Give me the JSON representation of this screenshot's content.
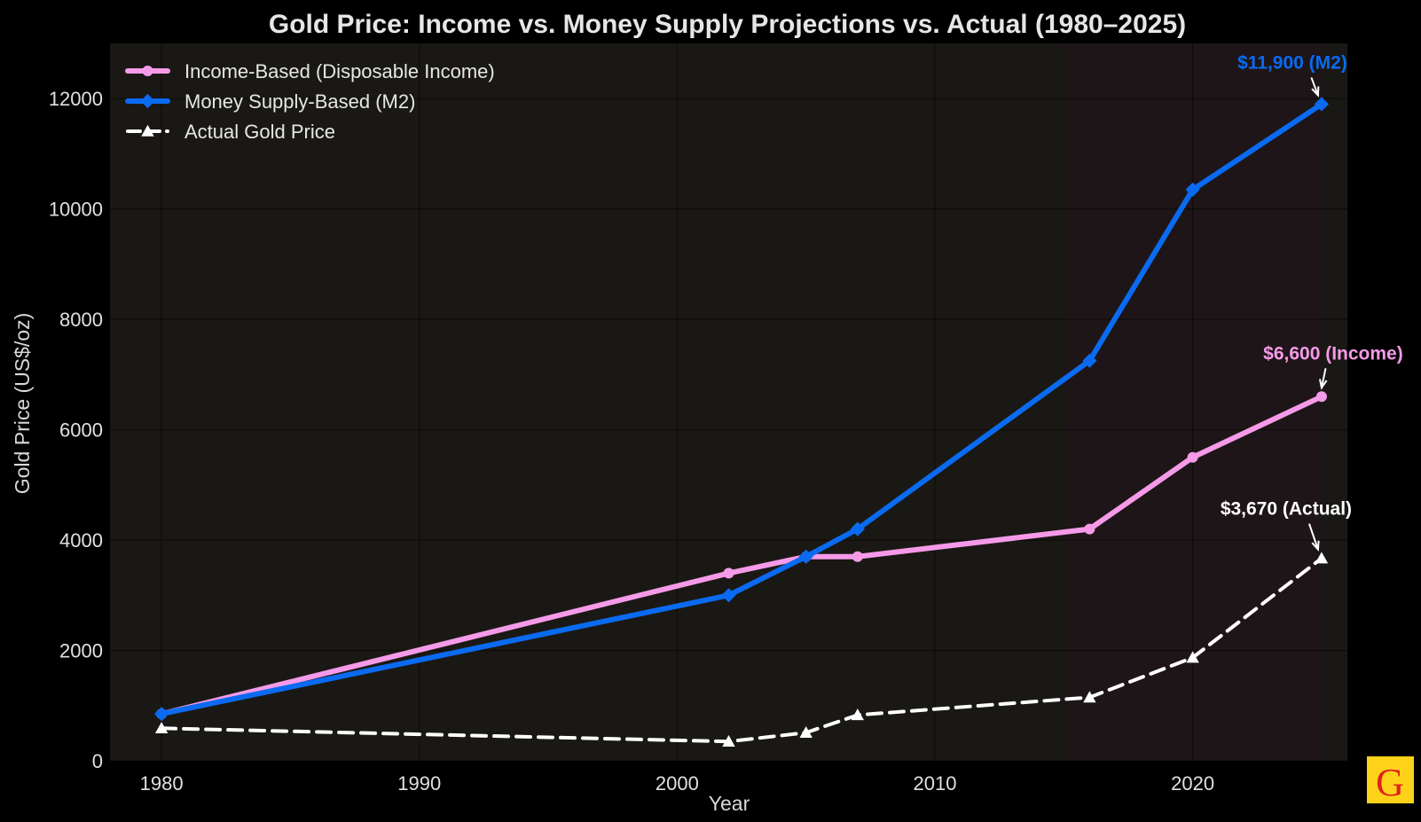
{
  "chart_data": {
    "type": "line",
    "title": "Gold Price: Income vs. Money Supply Projections vs. Actual (1980–2025)",
    "xlabel": "Year",
    "ylabel": "Gold Price (US$/oz)",
    "xlim": [
      1978,
      2026
    ],
    "ylim": [
      0,
      13000
    ],
    "xticks": [
      1980,
      1990,
      2000,
      2010,
      2020
    ],
    "yticks": [
      0,
      2000,
      4000,
      6000,
      8000,
      10000,
      12000
    ],
    "grid": true,
    "legend_position": "top-left",
    "shaded_region": {
      "x": [
        2015,
        2025
      ],
      "color": "#1e1518"
    },
    "series": [
      {
        "name": "Income-Based (Disposable Income)",
        "color": "#f59ae8",
        "marker": "circle",
        "dash": "solid",
        "x": [
          1980,
          2002,
          2005,
          2007,
          2016,
          2020,
          2025
        ],
        "y": [
          850,
          3400,
          3700,
          3700,
          4200,
          5500,
          6600
        ]
      },
      {
        "name": "Money Supply-Based (M2)",
        "color": "#0a6af0",
        "marker": "diamond",
        "dash": "solid",
        "x": [
          1980,
          2002,
          2005,
          2007,
          2016,
          2020,
          2025
        ],
        "y": [
          850,
          3000,
          3700,
          4200,
          7250,
          10350,
          11900
        ]
      },
      {
        "name": "Actual Gold Price",
        "color": "#ffffff",
        "marker": "triangle",
        "dash": "dashed",
        "x": [
          1980,
          2002,
          2005,
          2007,
          2016,
          2020,
          2025
        ],
        "y": [
          590,
          350,
          510,
          830,
          1150,
          1870,
          3670
        ]
      }
    ],
    "annotations": [
      {
        "text": "$11,900 (M2)",
        "color": "#0a6af0",
        "x": 2025,
        "y": 11900
      },
      {
        "text": "$6,600 (Income)",
        "color": "#f59ae8",
        "x": 2025,
        "y": 6600
      },
      {
        "text": "$3,670 (Actual)",
        "color": "#ffffff",
        "x": 2025,
        "y": 3670
      }
    ]
  },
  "colors": {
    "background": "#000000",
    "plot_background": "#1a1814"
  },
  "logo": {
    "letter": "G"
  }
}
